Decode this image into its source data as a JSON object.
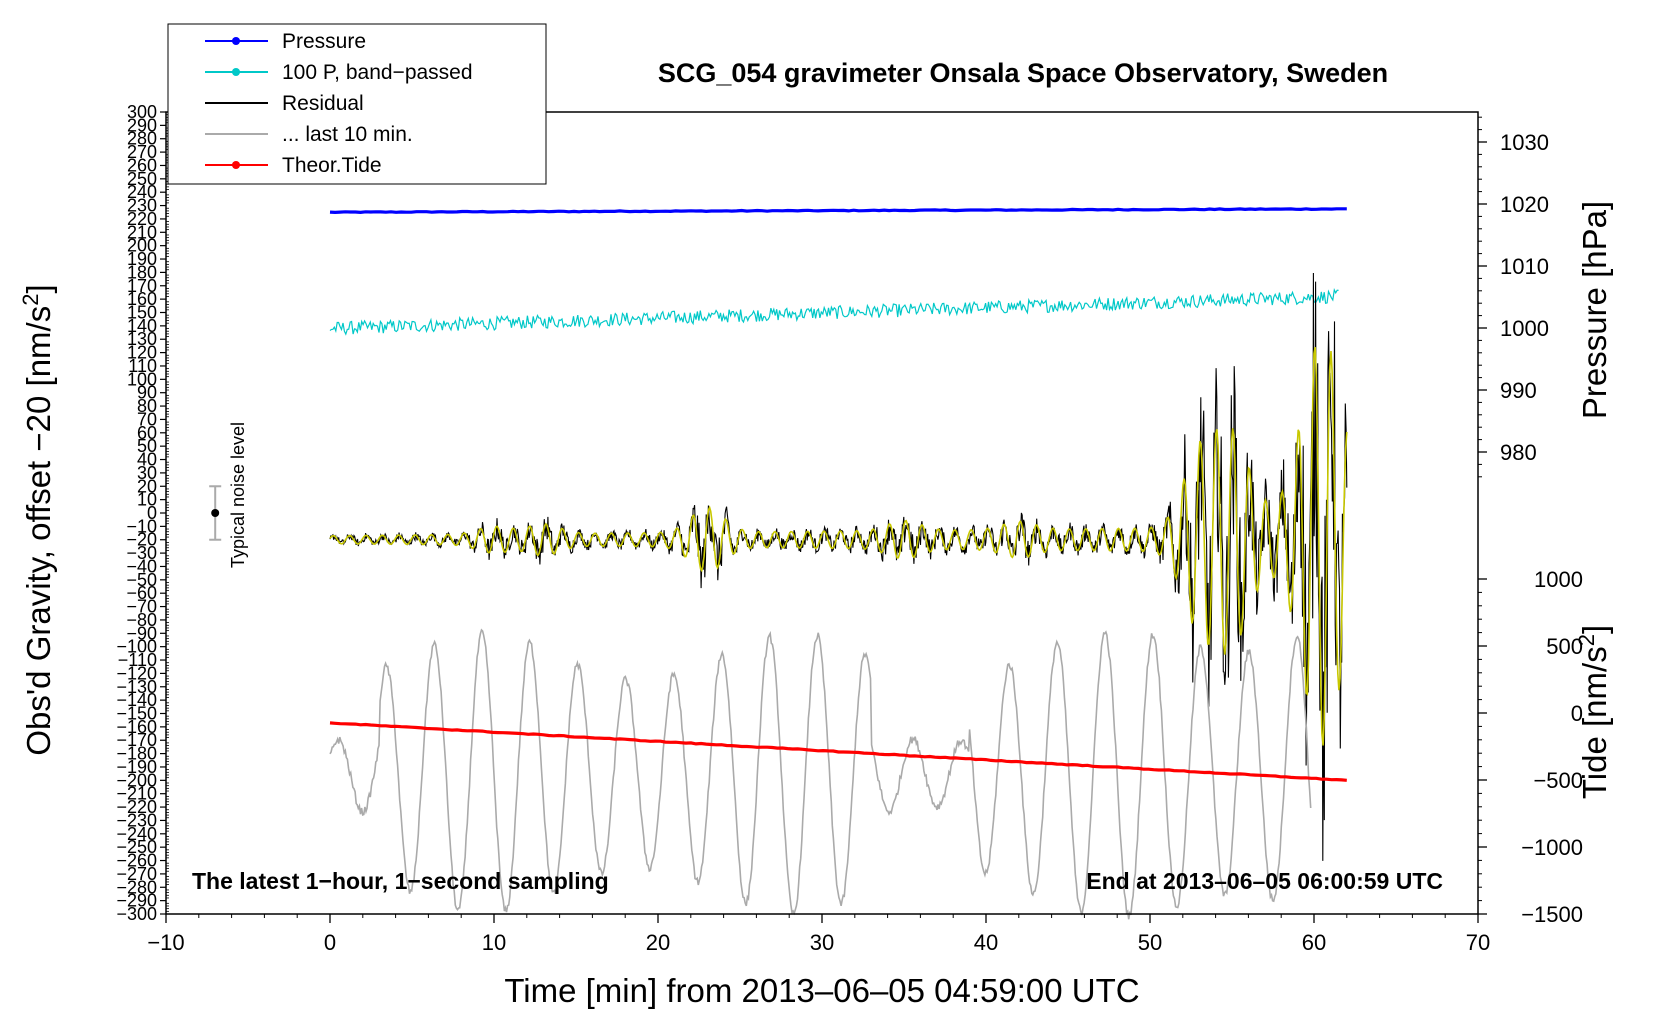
{
  "chart_data": {
    "type": "line",
    "title": "SCG_054 gravimeter Onsala Space Observatory, Sweden",
    "xlabel": "Time [min] from 2013–06–05 04:59:00 UTC",
    "ylabel_left": "Obs'd Gravity, offset −20 [nm/s",
    "ylabel_left_sup": "2",
    "ylabel_left_end": "]",
    "ylabel_pressure": "Pressure [hPa]",
    "ylabel_tide": "Tide [nm/s",
    "ylabel_tide_sup": "2",
    "ylabel_tide_end": "]",
    "xlim": [
      -10,
      70
    ],
    "x_ticks": [
      -10,
      0,
      10,
      20,
      30,
      40,
      50,
      60,
      70
    ],
    "x_tick_labels": [
      "−10",
      "0",
      "10",
      "20",
      "30",
      "40",
      "50",
      "60",
      "70"
    ],
    "ylim_left": [
      -300,
      300
    ],
    "y_left_tick_labels": [
      "300",
      "290",
      "280",
      "270",
      "260",
      "250",
      "240",
      "230",
      "220",
      "210",
      "200",
      "190",
      "180",
      "170",
      "160",
      "150",
      "140",
      "130",
      "120",
      "110",
      "100",
      "90",
      "80",
      "70",
      "60",
      "50",
      "40",
      "30",
      "20",
      "10",
      "0",
      "−10",
      "−20",
      "−30",
      "−40",
      "−50",
      "−60",
      "−70",
      "−80",
      "−90",
      "−100",
      "−110",
      "−120",
      "−130",
      "−140",
      "−150",
      "−160",
      "−170",
      "−180",
      "−190",
      "−200",
      "−210",
      "−220",
      "−230",
      "−240",
      "−250",
      "−260",
      "−270",
      "−280",
      "−290",
      "−300"
    ],
    "pressure_ticks": [
      980,
      990,
      1000,
      1010,
      1020,
      1030
    ],
    "pressure_tick_labels": [
      "980",
      "990",
      "1000",
      "1010",
      "1020",
      "1030"
    ],
    "tide_ticks": [
      1000,
      500,
      0,
      -500,
      -1000,
      -1500
    ],
    "tide_tick_labels": [
      "1000",
      "500",
      "0",
      "−500",
      "−1000",
      "−1500"
    ],
    "series": [
      {
        "name": "Pressure",
        "color": "#0000ff",
        "axis": "left",
        "kind": "flat",
        "x0": 0,
        "x1": 62,
        "y0": 225,
        "y1": 227.5
      },
      {
        "name": "100 P, band−passed",
        "color": "#00c8c8",
        "axis": "left",
        "kind": "noisy",
        "x0": 0,
        "x1": 61.5,
        "y0": 138,
        "y1": 162,
        "noise": 5
      },
      {
        "name": "Residual",
        "color": "#000000",
        "axis": "left",
        "kind": "residual",
        "x0": 0,
        "x1": 62,
        "center": -20
      },
      {
        "name": "... last 10 min.",
        "color": "#aaaaaa",
        "axis": "left",
        "kind": "oscillation",
        "x0": 0,
        "x1": 59.8,
        "center": -195
      },
      {
        "name": "Theor.Tide",
        "color": "#ff0000",
        "axis": "left",
        "kind": "flat",
        "x0": 0,
        "x1": 62,
        "y0": -157,
        "y1": -200
      },
      {
        "name": "band-passed residual",
        "color": "#c8c800",
        "axis": "left",
        "kind": "residual-fit",
        "x0": 0,
        "x1": 62,
        "center": -20
      }
    ],
    "legend": [
      {
        "label": "Pressure",
        "color": "#0000ff",
        "marker": true
      },
      {
        "label": "100 P, band−passed",
        "color": "#00c8c8",
        "marker": true
      },
      {
        "label": "Residual",
        "color": "#000000",
        "marker": false
      },
      {
        "label": "... last 10 min.",
        "color": "#aaaaaa",
        "marker": false
      },
      {
        "label": "Theor.Tide",
        "color": "#ff0000",
        "marker": true
      }
    ],
    "noise_label": "Typical noise level",
    "noise_bar": {
      "x": -7,
      "center": 0,
      "half_range": 20
    },
    "annotation_left": "The latest 1−hour, 1−second sampling",
    "annotation_right": "End at 2013–06–05 06:00:59 UTC"
  }
}
